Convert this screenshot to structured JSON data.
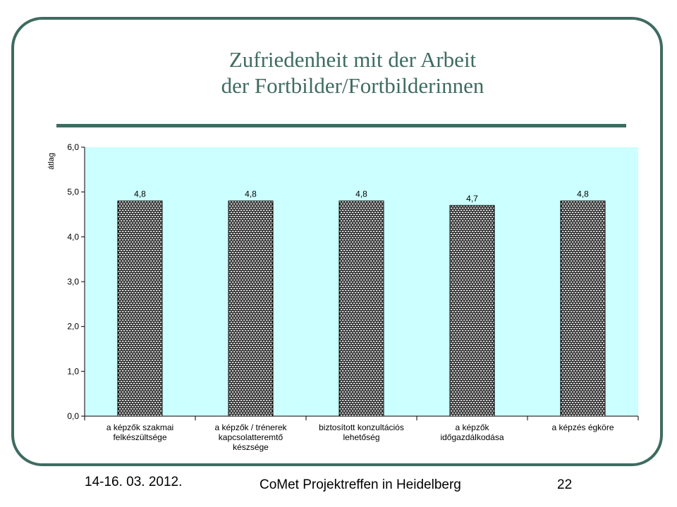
{
  "slide": {
    "title_line1": "Zufriedenheit mit der Arbeit",
    "title_line2": "der Fortbilder/Fortbilderinnen",
    "footer_date": "14-16. 03. 2012.",
    "footer_event": "CoMet Projektreffen in Heidelberg",
    "page_number": "22"
  },
  "colors": {
    "frame": "#3e6b60",
    "plot_background": "#ccffff",
    "bar_fill": "#000000",
    "bar_pattern": "#ffffff"
  },
  "chart_data": {
    "type": "bar",
    "title": "",
    "xlabel": "",
    "ylabel": "átlag",
    "ylim": [
      0,
      6
    ],
    "yticks": [
      "0,0",
      "1,0",
      "2,0",
      "3,0",
      "4,0",
      "5,0",
      "6,0"
    ],
    "grid": false,
    "categories": [
      [
        "a képzők  szakmai",
        "felkészültsége"
      ],
      [
        "a képzők / trénerek",
        "kapcsolatteremtő",
        "készsége"
      ],
      [
        "biztosított konzultációs",
        "lehetőség"
      ],
      [
        "a képzők",
        "időgazdálkodása"
      ],
      [
        "a képzés égköre"
      ]
    ],
    "values": [
      4.8,
      4.8,
      4.8,
      4.7,
      4.8
    ],
    "data_labels": [
      "4,8",
      "4,8",
      "4,8",
      "4,7",
      "4,8"
    ]
  }
}
